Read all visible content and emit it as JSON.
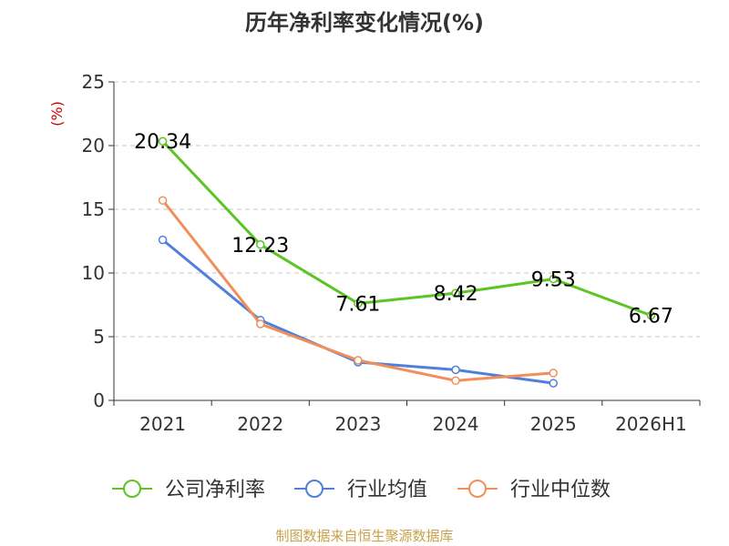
{
  "chart_data": {
    "type": "line",
    "title": "历年净利率变化情况(%)",
    "ylabel": "(%)",
    "xlabel": "",
    "categories": [
      "2021",
      "2022",
      "2023",
      "2024",
      "2025",
      "2026H1"
    ],
    "ylim": [
      0,
      25
    ],
    "yticks": [
      0,
      5,
      10,
      15,
      20,
      25
    ],
    "grid": true,
    "legend_position": "bottom",
    "series": [
      {
        "name": "公司净利率",
        "color": "#5cc423",
        "values": [
          20.34,
          12.23,
          7.61,
          8.42,
          9.53,
          6.67
        ],
        "labels": [
          "20.34",
          "12.23",
          "7.61",
          "8.42",
          "9.53",
          "6.67"
        ]
      },
      {
        "name": "行业均值",
        "color": "#4f7fdb",
        "values": [
          12.6,
          6.3,
          3.0,
          2.4,
          1.35,
          null
        ]
      },
      {
        "name": "行业中位数",
        "color": "#f28e5a",
        "values": [
          15.7,
          6.0,
          3.15,
          1.55,
          2.15,
          null
        ]
      }
    ]
  },
  "source_text": "制图数据来自恒生聚源数据库",
  "colors": {
    "axis": "#333333",
    "grid": "#c8c8c8",
    "ylabel": "#cc0000",
    "source": "#c8a24a"
  }
}
